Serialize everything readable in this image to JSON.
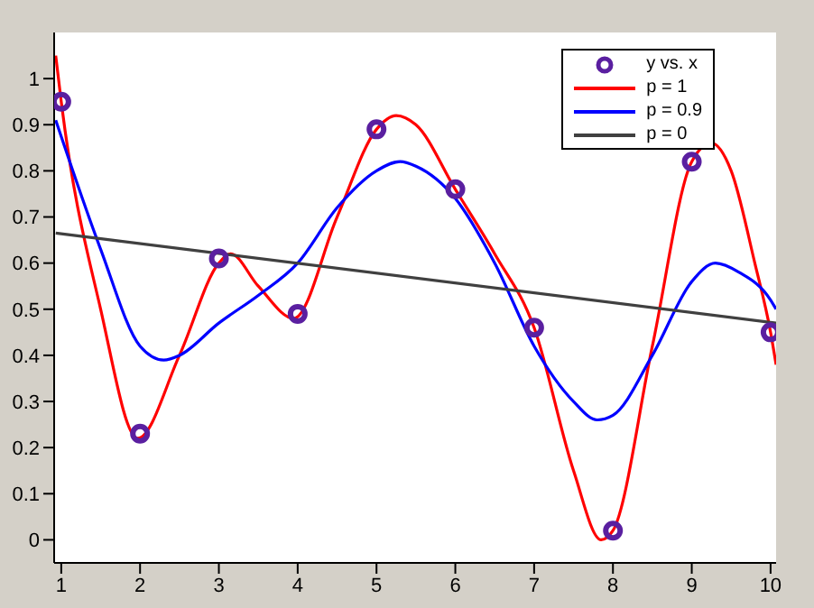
{
  "chart_data": {
    "type": "line",
    "xlim": [
      0.91,
      10.07
    ],
    "ylim": [
      -0.05,
      1.1
    ],
    "xticks": [
      1,
      2,
      3,
      4,
      5,
      6,
      7,
      8,
      9,
      10
    ],
    "yticks": [
      0,
      0.1,
      0.2,
      0.3,
      0.4,
      0.5,
      0.6,
      0.7,
      0.8,
      0.9,
      1
    ],
    "grid": false,
    "legend": "top right",
    "series": [
      {
        "name": "y vs. x",
        "type": "scatter",
        "marker": "circle",
        "color": "#5a1fa0",
        "x": [
          1,
          2,
          3,
          4,
          5,
          6,
          7,
          8,
          9,
          10
        ],
        "values": [
          0.95,
          0.23,
          0.61,
          0.49,
          0.89,
          0.76,
          0.46,
          0.02,
          0.82,
          0.45
        ]
      },
      {
        "name": "p = 1",
        "marker": "none",
        "color": "#ff0000",
        "x": [
          0.93,
          1,
          1.5,
          1.97,
          2.5,
          3,
          3.15,
          3.5,
          3.95,
          4.5,
          5,
          5.25,
          5.5,
          6,
          6.5,
          7,
          7.5,
          7.85,
          8,
          8.5,
          9,
          9.25,
          9.5,
          9.8,
          10,
          10.07
        ],
        "values": [
          1.05,
          0.95,
          0.5,
          0.22,
          0.4,
          0.6,
          0.62,
          0.55,
          0.48,
          0.7,
          0.89,
          0.92,
          0.9,
          0.76,
          0.62,
          0.46,
          0.15,
          0.0,
          0.02,
          0.42,
          0.82,
          0.86,
          0.8,
          0.6,
          0.45,
          0.38
        ]
      },
      {
        "name": "p = 0.9",
        "marker": "none",
        "color": "#0000ff",
        "x": [
          0.93,
          1.5,
          2,
          2.3,
          2.5,
          3,
          3.5,
          4,
          4.5,
          5,
          5.3,
          5.5,
          6,
          6.5,
          7,
          7.5,
          7.8,
          8,
          8.5,
          9,
          9.3,
          9.6,
          10,
          10.07
        ],
        "values": [
          0.91,
          0.63,
          0.42,
          0.39,
          0.4,
          0.47,
          0.53,
          0.6,
          0.72,
          0.8,
          0.82,
          0.81,
          0.74,
          0.6,
          0.42,
          0.3,
          0.26,
          0.27,
          0.4,
          0.56,
          0.6,
          0.58,
          0.52,
          0.5
        ]
      },
      {
        "name": "p = 0",
        "marker": "none",
        "color": "#404040",
        "x": [
          0.93,
          10.07
        ],
        "values": [
          0.665,
          0.47
        ]
      }
    ]
  }
}
